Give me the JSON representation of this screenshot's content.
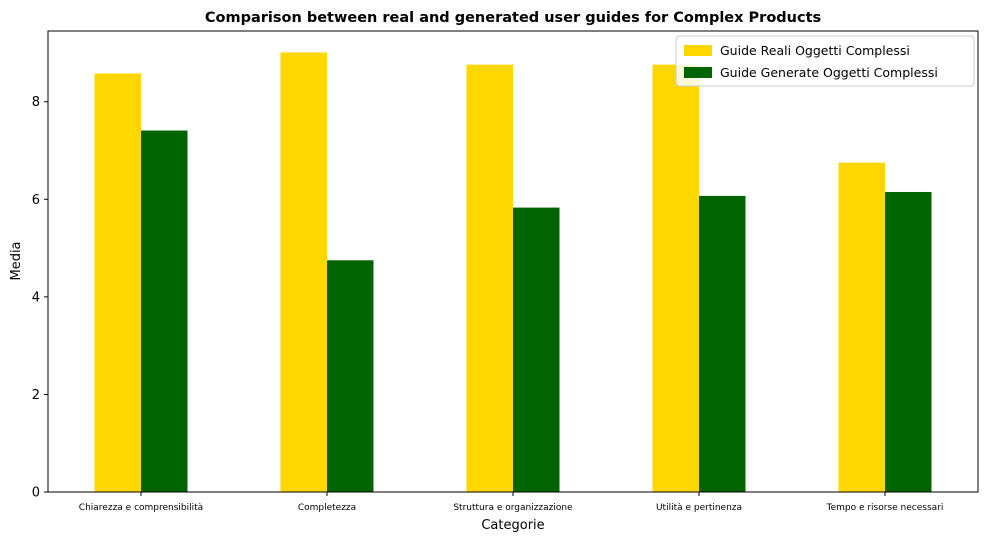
{
  "chart_data": {
    "type": "bar",
    "title": "Comparison between real and generated user guides for Complex Products",
    "xlabel": "Categorie",
    "ylabel": "Media",
    "ylim": [
      0,
      9.45
    ],
    "yticks": [
      0,
      2,
      4,
      6,
      8
    ],
    "categories": [
      "Chiarezza e comprensibilità",
      "Completezza",
      "Struttura e organizzazione",
      "Utilità e pertinenza",
      "Tempo e risorse necessari"
    ],
    "series": [
      {
        "name": "Guide Reali Oggetti Complessi",
        "color": "#FFD700",
        "values": [
          8.58,
          9.01,
          8.76,
          8.76,
          6.75
        ]
      },
      {
        "name": "Guide Generate Oggetti Complessi",
        "color": "#006400",
        "values": [
          7.41,
          4.75,
          5.83,
          6.07,
          6.15
        ]
      }
    ],
    "grid": false,
    "legend_position": "top-right"
  }
}
